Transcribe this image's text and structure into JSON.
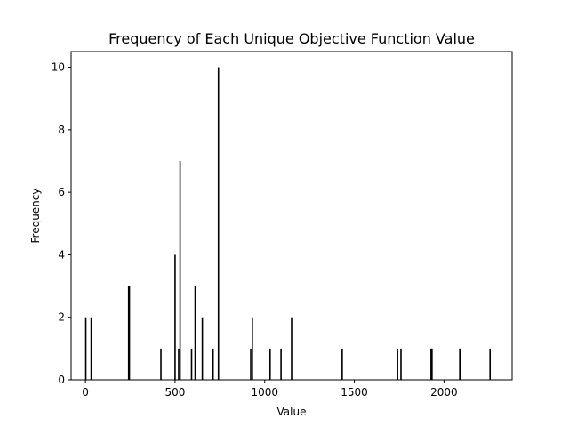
{
  "chart_data": {
    "type": "bar",
    "title": "Frequency of Each Unique Objective Function Value",
    "xlabel": "Value",
    "ylabel": "Frequency",
    "xlim": [
      -80,
      2380
    ],
    "ylim": [
      0,
      10.5
    ],
    "xticks": [
      0,
      500,
      1000,
      1500,
      2000
    ],
    "yticks": [
      0,
      2,
      4,
      6,
      8,
      10
    ],
    "x": [
      2,
      32,
      241,
      245,
      421,
      500,
      520,
      528,
      592,
      612,
      652,
      712,
      742,
      922,
      931,
      1030,
      1091,
      1150,
      1432,
      1741,
      1760,
      1928,
      1933,
      2088,
      2092,
      2257
    ],
    "values": [
      2,
      2,
      3,
      3,
      1,
      4,
      1,
      7,
      1,
      3,
      2,
      1,
      10,
      1,
      2,
      1,
      1,
      2,
      1,
      1,
      1,
      1,
      1,
      1,
      1,
      1
    ],
    "bar_color": "#000000",
    "grid": false,
    "legend": "none"
  }
}
